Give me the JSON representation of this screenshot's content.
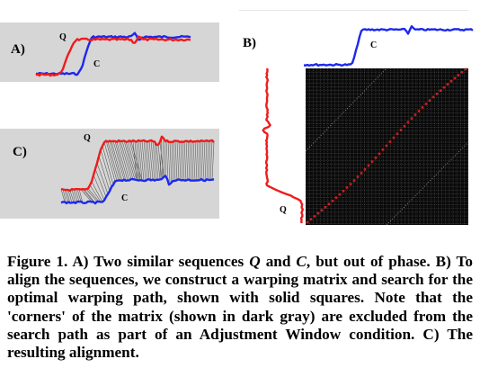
{
  "panels": {
    "a": {
      "label": "A)",
      "q_label": "Q",
      "c_label": "C"
    },
    "b": {
      "label": "B)",
      "q_label": "Q",
      "c_label": "C"
    },
    "c": {
      "label": "C)",
      "q_label": "Q",
      "c_label": "C"
    }
  },
  "colors": {
    "q_series": "#ee1c1c",
    "c_series": "#1c28ee",
    "panel_bg": "#d6d6d6",
    "matrix_bg": "#0a0a0a",
    "warp_path": "#cc2020",
    "alignment_lines": "#5a5a5a"
  },
  "caption": {
    "p1": "Figure 1. A) Two similar sequences ",
    "q": "Q",
    "p2": " and ",
    "c": "C",
    "p3": ", but out of phase. B) To align the sequences, we construct a warping matrix and search for the optimal warping path, shown with solid squares. Note that the 'corners' of the matrix (shown in dark gray) are excluded from the search path as part of an Adjustment Window condition. C) The resulting alignment."
  }
}
